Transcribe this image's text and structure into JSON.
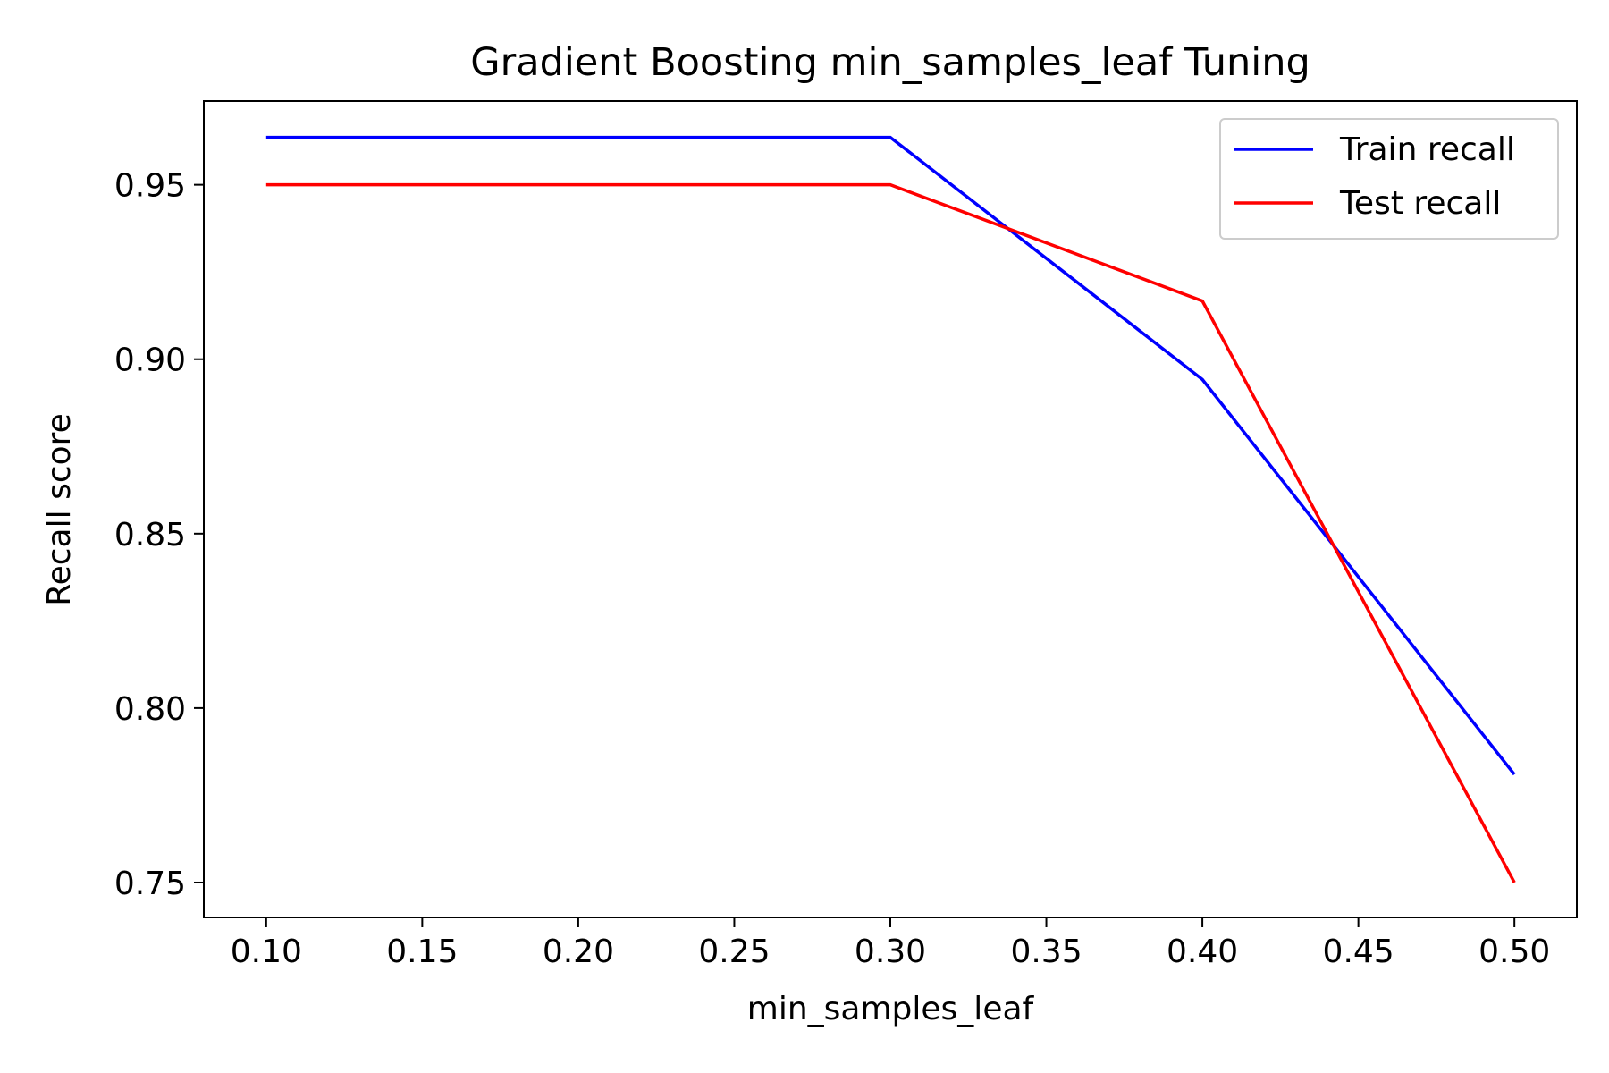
{
  "chart_data": {
    "type": "line",
    "title": "Gradient Boosting min_samples_leaf Tuning",
    "xlabel": "min_samples_leaf",
    "ylabel": "Recall score",
    "x": [
      0.1,
      0.2,
      0.3,
      0.4,
      0.5
    ],
    "xlim": [
      0.08,
      0.52
    ],
    "ylim": [
      0.74,
      0.974
    ],
    "x_ticks": [
      "0.10",
      "0.15",
      "0.20",
      "0.25",
      "0.30",
      "0.35",
      "0.40",
      "0.45",
      "0.50"
    ],
    "y_ticks": [
      "0.75",
      "0.80",
      "0.85",
      "0.90",
      "0.95"
    ],
    "series": [
      {
        "name": "Train recall",
        "color": "#0000ff",
        "values": [
          0.9636,
          0.9636,
          0.9636,
          0.8942,
          0.781
        ]
      },
      {
        "name": "Test recall",
        "color": "#ff0000",
        "values": [
          0.95,
          0.95,
          0.95,
          0.9167,
          0.75
        ]
      }
    ],
    "legend_position": "top-right",
    "grid": false
  }
}
